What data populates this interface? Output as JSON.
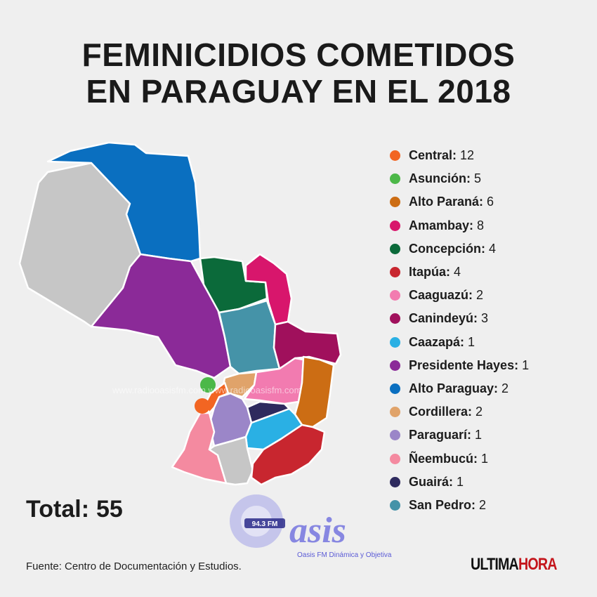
{
  "title": {
    "line1": "FEMINICIDIOS COMETIDOS",
    "line2": "EN PARAGUAY EN EL 2018"
  },
  "legend": [
    {
      "name": "Central",
      "value": "12",
      "color": "#f26522"
    },
    {
      "name": "Asunción",
      "value": "5",
      "color": "#4cb848"
    },
    {
      "name": "Alto Paraná",
      "value": "6",
      "color": "#cc6d14"
    },
    {
      "name": "Amambay",
      "value": "8",
      "color": "#d8166c"
    },
    {
      "name": "Concepción",
      "value": "4",
      "color": "#0b6a3a"
    },
    {
      "name": "Itapúa",
      "value": "4",
      "color": "#c8262f"
    },
    {
      "name": "Caaguazú",
      "value": "2",
      "color": "#f27bb0"
    },
    {
      "name": "Canindeyú",
      "value": "3",
      "color": "#a0105c"
    },
    {
      "name": "Caazapá",
      "value": "1",
      "color": "#2ab0e4"
    },
    {
      "name": "Presidente Hayes",
      "value": "1",
      "color": "#8b2a98"
    },
    {
      "name": "Alto Paraguay",
      "value": "2",
      "color": "#0a6fc0"
    },
    {
      "name": "Cordillera",
      "value": "2",
      "color": "#e0a36a"
    },
    {
      "name": "Paraguarí",
      "value": "1",
      "color": "#9b86c8"
    },
    {
      "name": "Ñeembucú",
      "value": "1",
      "color": "#f48aa0"
    },
    {
      "name": "Guairá",
      "value": "1",
      "color": "#2e2a5e"
    },
    {
      "name": "San Pedro",
      "value": "2",
      "color": "#4593a8"
    }
  ],
  "boqueron_color": "#c6c6c6",
  "misiones_color": "#c6c6c6",
  "total": {
    "label": "Total:",
    "value": "55"
  },
  "source": "Fuente: Centro de Documentación y Estudios.",
  "brand": {
    "part1": "ULTIMA",
    "part2": "HORA"
  },
  "watermark": {
    "url": "www.radiooasisfm.com  www.radiooasisfm.com",
    "logo_text": "asis",
    "freq": "94.3 FM",
    "tagline": "Oasis FM Dinámica y Objetiva"
  }
}
